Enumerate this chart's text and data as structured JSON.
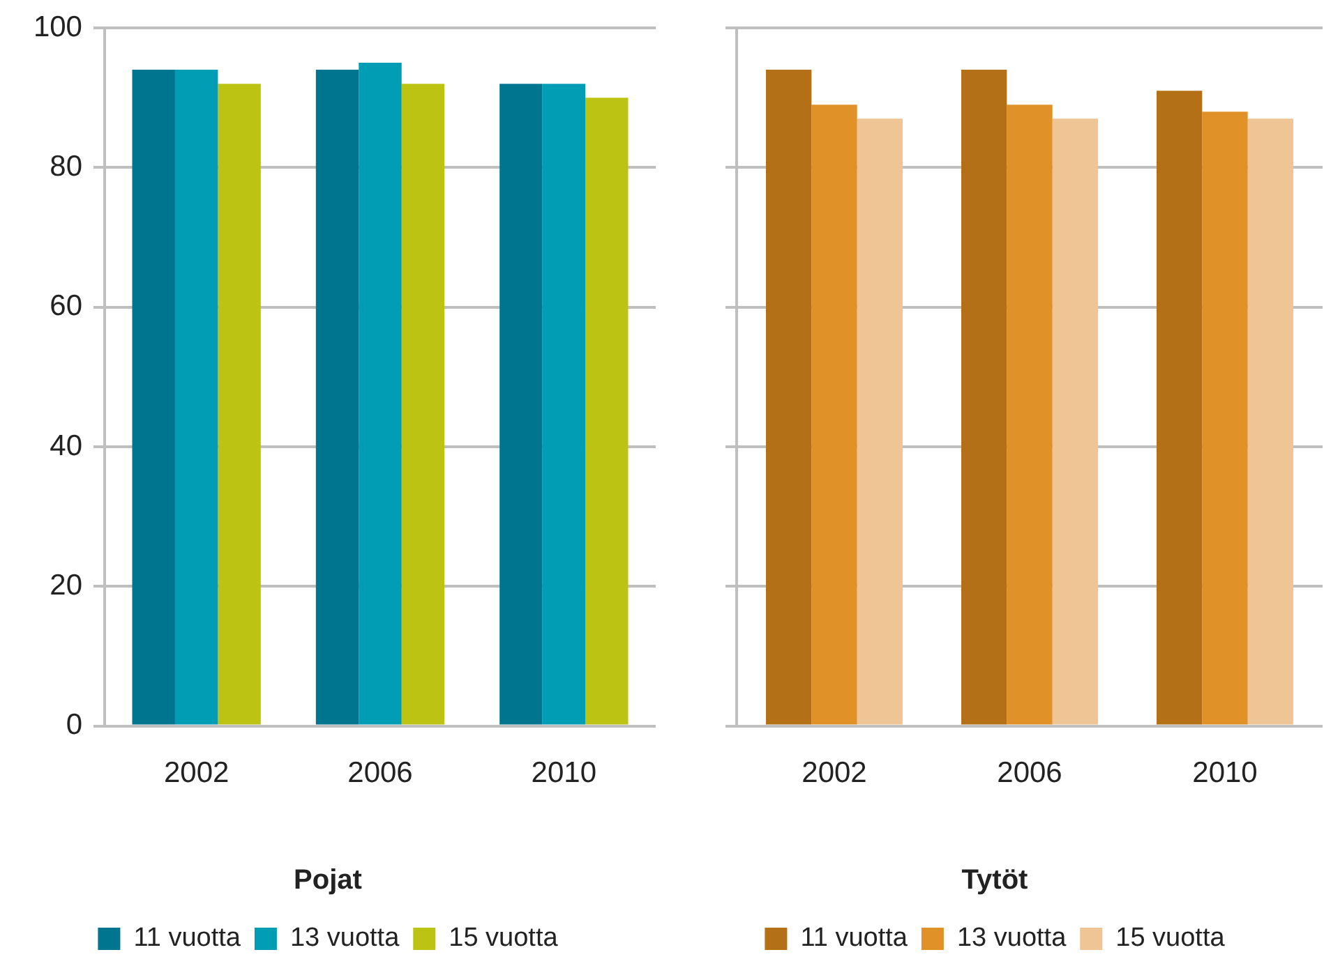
{
  "chart_data": [
    {
      "type": "bar",
      "categories": [
        "2002",
        "2006",
        "2010"
      ],
      "legend_title": "Pojat",
      "legend": "bottom",
      "grid": "y",
      "ylim": [
        0,
        100
      ],
      "yticks": [
        0,
        20,
        40,
        60,
        80,
        100
      ],
      "series": [
        {
          "name": "11 vuotta",
          "color": "#00758f",
          "values": [
            94,
            94,
            92
          ]
        },
        {
          "name": "13 vuotta",
          "color": "#009db4",
          "values": [
            94,
            95,
            92
          ]
        },
        {
          "name": "15 vuotta",
          "color": "#bcc312",
          "values": [
            92,
            92,
            90
          ]
        }
      ]
    },
    {
      "type": "bar",
      "categories": [
        "2002",
        "2006",
        "2010"
      ],
      "legend_title": "Tytöt",
      "legend": "bottom",
      "grid": "y",
      "ylim": [
        0,
        100
      ],
      "yticks": [
        0,
        20,
        40,
        60,
        80,
        100
      ],
      "tick_labels": "x",
      "series": [
        {
          "name": "11 vuotta",
          "color": "#b47016",
          "values": [
            94,
            94,
            91
          ]
        },
        {
          "name": "13 vuotta",
          "color": "#e09228",
          "values": [
            89,
            89,
            88
          ]
        },
        {
          "name": "15 vuotta",
          "color": "#efc595",
          "values": [
            87,
            87,
            87
          ]
        }
      ]
    }
  ]
}
